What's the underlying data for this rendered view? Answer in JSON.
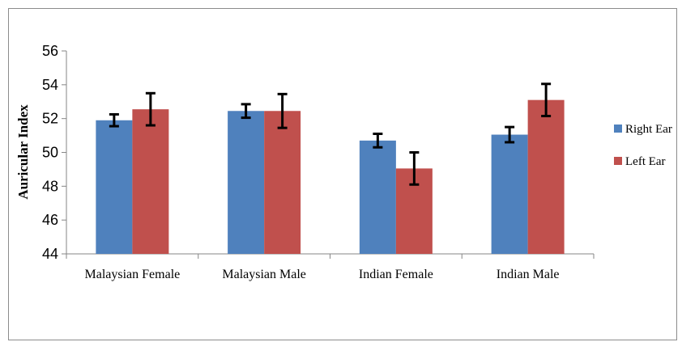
{
  "chart_data": {
    "type": "bar",
    "categories": [
      "Malaysian Female",
      "Malaysian Male",
      "Indian Female",
      "Indian Male"
    ],
    "series": [
      {
        "name": "Right Ear",
        "color": "#4F81BD",
        "values": [
          51.9,
          52.45,
          50.7,
          51.05
        ],
        "error": [
          0.35,
          0.4,
          0.4,
          0.45
        ]
      },
      {
        "name": "Left Ear",
        "color": "#C0504D",
        "values": [
          52.55,
          52.45,
          49.05,
          53.1
        ],
        "error": [
          0.95,
          1.0,
          0.95,
          0.95
        ]
      }
    ],
    "ylabel": "Auricular Index",
    "xlabel": "",
    "ylim": [
      44,
      56
    ],
    "yticks": [
      44,
      46,
      48,
      50,
      52,
      54,
      56
    ],
    "grid": false,
    "legend": "right"
  }
}
